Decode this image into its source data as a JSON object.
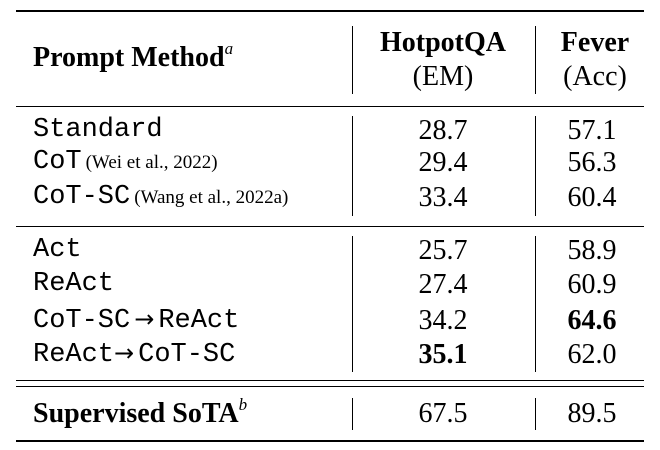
{
  "header": {
    "method": "Prompt Method",
    "method_sup": "a",
    "col1_title": "HotpotQA",
    "col1_sub": "(EM)",
    "col2_title": "Fever",
    "col2_sub": "(Acc)"
  },
  "group1": [
    {
      "method": "Standard",
      "cite": "",
      "hotpotqa": "28.7",
      "fever": "57.1"
    },
    {
      "method": "CoT",
      "cite": "(Wei et al., 2022)",
      "hotpotqa": "29.4",
      "fever": "56.3"
    },
    {
      "method": "CoT-SC",
      "cite": "(Wang et al., 2022a)",
      "hotpotqa": "33.4",
      "fever": "60.4"
    }
  ],
  "group2": [
    {
      "method": "Act",
      "hotpotqa": "25.7",
      "fever": "58.9"
    },
    {
      "method": "ReAct",
      "hotpotqa": "27.4",
      "fever": "60.9"
    },
    {
      "method_a": "CoT-SC",
      "arrow": "→",
      "method_b": "ReAct",
      "hotpotqa": "34.2",
      "fever": "64.6"
    },
    {
      "method_a": "ReAct",
      "arrow": "→",
      "method_b": "CoT-SC",
      "hotpotqa": "35.1",
      "fever": "62.0"
    }
  ],
  "footer": {
    "method": "Supervised SoTA",
    "method_sup": "b",
    "hotpotqa": "67.5",
    "fever": "89.5"
  }
}
